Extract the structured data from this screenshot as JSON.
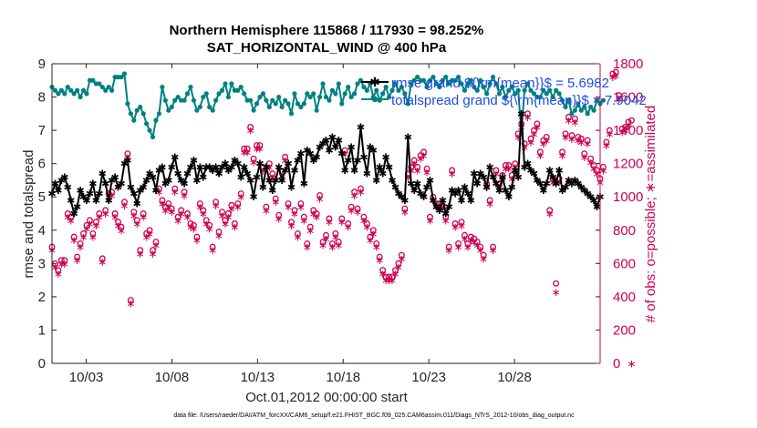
{
  "chart_data": {
    "type": "line",
    "title_line1": "Northern Hemisphere 115868 / 117930 = 98.252%",
    "title_line2": "SAT_HORIZONTAL_WIND @ 400 hPa",
    "xlabel": "Oct.01,2012 00:00:00 start",
    "ylabel": "rmse and totalspread",
    "ylabel_right": "# of obs: o=possible; ∗=assimilated",
    "footnote": "data file: /Users/raeder/DAI/ATM_forcXX/CAM6_setup/f.e21.FHIST_BGC.f09_025.CAM6assim.011/Diags_NTrS_2012-10/obs_diag_output.nc",
    "x_range_days": [
      1,
      33
    ],
    "xticks": [
      {
        "day": 3,
        "label": "10/03"
      },
      {
        "day": 8,
        "label": "10/08"
      },
      {
        "day": 13,
        "label": "10/13"
      },
      {
        "day": 18,
        "label": "10/18"
      },
      {
        "day": 23,
        "label": "10/23"
      },
      {
        "day": 28,
        "label": "10/28"
      }
    ],
    "ylim": [
      0,
      9
    ],
    "yticks": [
      0,
      1,
      2,
      3,
      4,
      5,
      6,
      7,
      8,
      9
    ],
    "ylim_right": [
      0,
      1800
    ],
    "yticks_right": [
      0,
      200,
      400,
      600,
      800,
      1000,
      1200,
      1400,
      1600,
      1800
    ],
    "grid": false,
    "legend_position": "top-right",
    "colors": {
      "rmse": "#000000",
      "spread": "#008080",
      "obs": "#cc0052",
      "legend_text": "#1a4de6"
    },
    "series": [
      {
        "key": "rmse",
        "name": "rmse grand ${\\rm{mean}}$ = 5.6982",
        "axis": "left",
        "values": [
          5.1,
          5.4,
          5.2,
          5.5,
          5.6,
          5.3,
          4.9,
          4.5,
          4.7,
          5.2,
          5.0,
          4.9,
          5.1,
          5.4,
          4.9,
          5.1,
          5.7,
          5.4,
          4.9,
          5.5,
          5.6,
          5.3,
          5.4,
          6.0,
          6.1,
          5.3,
          5.1,
          4.8,
          5.2,
          5.3,
          5.5,
          5.7,
          5.6,
          5.2,
          5.8,
          5.9,
          5.4,
          5.5,
          5.9,
          6.2,
          5.7,
          5.5,
          5.4,
          5.7,
          5.9,
          6.1,
          5.5,
          5.9,
          5.6,
          5.9,
          5.9,
          5.8,
          5.9,
          5.7,
          5.9,
          6.0,
          5.8,
          5.9,
          6.1,
          6.0,
          5.6,
          5.9,
          5.7,
          5.5,
          5.0,
          5.6,
          6.0,
          5.3,
          5.9,
          5.5,
          5.2,
          5.5,
          5.9,
          5.5,
          5.8,
          6.0,
          5.3,
          5.8,
          6.1,
          6.3,
          5.4,
          6.4,
          6.3,
          6.1,
          6.2,
          6.5,
          6.6,
          6.7,
          6.4,
          6.8,
          6.5,
          6.7,
          6.3,
          5.8,
          6.1,
          6.5,
          5.8,
          6.1,
          7.1,
          6.2,
          5.7,
          6.5,
          6.4,
          5.5,
          5.9,
          5.7,
          6.2,
          5.9,
          5.5,
          5.3,
          5.1,
          5.0,
          4.9,
          6.8,
          5.4,
          5.2,
          5.4,
          5.1,
          5.0,
          5.3,
          5.5,
          4.9,
          4.7,
          4.6,
          4.9,
          4.5,
          4.7,
          5.2,
          5.1,
          5.2,
          4.9,
          5.3,
          5.1,
          4.9,
          5.7,
          5.4,
          5.7,
          5.6,
          5.3,
          5.9,
          5.6,
          5.4,
          5.2,
          5.6,
          5.2,
          5.0,
          5.3,
          5.8,
          5.6,
          7.5,
          5.9,
          6.0,
          5.8,
          5.7,
          5.5,
          5.4,
          5.2,
          5.4,
          5.8,
          5.6,
          5.4,
          5.8,
          5.2,
          5.3,
          5.5,
          5.4,
          5.5,
          5.4,
          5.3,
          5.2,
          5.1,
          5.0,
          4.9,
          4.7,
          5.0
        ]
      },
      {
        "key": "spread",
        "name": "totalspread grand ${\\rm{mean}}$ = 7.9042",
        "axis": "left",
        "values": [
          8.3,
          8.2,
          8.1,
          8.2,
          8.1,
          8.3,
          8.2,
          8.1,
          8.2,
          8.0,
          8.2,
          8.1,
          8.5,
          8.5,
          8.4,
          8.4,
          8.3,
          8.2,
          8.3,
          8.2,
          8.6,
          8.6,
          8.6,
          8.7,
          7.8,
          7.5,
          7.3,
          7.6,
          7.7,
          7.5,
          7.2,
          7.0,
          6.8,
          7.3,
          7.5,
          8.3,
          7.9,
          7.6,
          7.7,
          7.9,
          8.0,
          7.9,
          7.9,
          8.1,
          8.3,
          7.9,
          7.6,
          7.7,
          8.0,
          8.1,
          7.7,
          7.6,
          7.9,
          8.1,
          8.2,
          8.4,
          8.0,
          8.4,
          8.2,
          8.2,
          8.3,
          8.1,
          7.9,
          7.9,
          7.6,
          7.8,
          8.0,
          8.1,
          7.9,
          7.7,
          7.9,
          7.8,
          8.0,
          7.7,
          7.9,
          7.8,
          7.5,
          8.1,
          7.8,
          7.7,
          7.8,
          8.1,
          8.0,
          8.1,
          7.6,
          8.0,
          8.4,
          8.0,
          7.9,
          8.2,
          8.1,
          8.4,
          7.8,
          8.1,
          8.3,
          8.0,
          8.1,
          8.4,
          8.5,
          8.3,
          8.2,
          8.4,
          8.0,
          8.2,
          7.9,
          8.1,
          8.3,
          8.0,
          8.2,
          8.4,
          8.2,
          8.3,
          8.1,
          7.8,
          8.4,
          8.5,
          8.6,
          8.5,
          8.5,
          8.3,
          8.5,
          8.6,
          8.4,
          8.3,
          8.5,
          8.6,
          8.4,
          8.5,
          8.5,
          8.6,
          8.4,
          8.2,
          8.4,
          8.5,
          8.3,
          8.2,
          8.5,
          8.3,
          8.1,
          8.4,
          8.6,
          8.4,
          8.1,
          8.3,
          8.0,
          8.2,
          8.3,
          8.1,
          8.2,
          6.9,
          8.2,
          8.4,
          8.2,
          8.1,
          8.0,
          8.0,
          8.2,
          8.1,
          8.2,
          8.0,
          8.2,
          8.1,
          7.9,
          7.7,
          7.9,
          7.5,
          7.6,
          7.8,
          7.6,
          7.7,
          7.5,
          7.7,
          7.6,
          7.9,
          7.8,
          7.9
        ]
      },
      {
        "key": "obs_possible",
        "name": "possible",
        "axis": "right",
        "marker": "o",
        "values": [
          700,
          600,
          560,
          620,
          620,
          900,
          880,
          760,
          640,
          720,
          780,
          830,
          860,
          780,
          850,
          900,
          630,
          920,
          1020,
          1030,
          900,
          850,
          820,
          970,
          1260,
          380,
          910,
          860,
          680,
          900,
          780,
          800,
          680,
          730,
          1050,
          980,
          940,
          960,
          930,
          1050,
          880,
          920,
          1030,
          900,
          840,
          830,
          760,
          960,
          920,
          860,
          830,
          700,
          970,
          790,
          910,
          860,
          900,
          950,
          840,
          960,
          1020,
          1290,
          1290,
          1420,
          1230,
          1310,
          1310,
          1180,
          940,
          1200,
          1140,
          990,
          890,
          1150,
          1240,
          960,
          850,
          920,
          780,
          960,
          880,
          720,
          820,
          920,
          900,
          1010,
          730,
          770,
          870,
          720,
          780,
          730,
          870,
          1280,
          840,
          940,
          1030,
          930,
          1050,
          880,
          840,
          760,
          800,
          720,
          640,
          560,
          520,
          520,
          520,
          560,
          600,
          650,
          930,
          1140,
          1180,
          1220,
          1180,
          1250,
          1270,
          1170,
          880,
          1000,
          960,
          960,
          950,
          880,
          700,
          1160,
          840,
          720,
          850,
          770,
          720,
          760,
          750,
          730,
          700,
          650,
          1080,
          980,
          700,
          1160,
          1080,
          1130,
          1190,
          1190,
          1130,
          1200,
          1380,
          1440,
          1320,
          1500,
          1350,
          1400,
          1440,
          1270,
          1340,
          1360,
          920,
          1110,
          480,
          1110,
          1270,
          1380,
          1480,
          1370,
          1470,
          1360,
          1350,
          1260,
          1340,
          1230,
          1190,
          1160,
          1110,
          1180,
          1330,
          1400,
          1740,
          1750,
          1610,
          1410,
          1420,
          1450,
          1460
        ]
      },
      {
        "key": "obs_assimilated",
        "name": "assimilated",
        "axis": "right",
        "marker": "*",
        "values": [
          680,
          580,
          540,
          600,
          600,
          880,
          860,
          740,
          620,
          700,
          760,
          810,
          840,
          760,
          830,
          880,
          610,
          900,
          1000,
          1010,
          880,
          830,
          800,
          950,
          1240,
          360,
          890,
          840,
          660,
          880,
          760,
          780,
          660,
          710,
          1030,
          960,
          920,
          940,
          910,
          1030,
          860,
          900,
          1010,
          880,
          820,
          810,
          740,
          940,
          900,
          840,
          810,
          680,
          950,
          770,
          890,
          840,
          880,
          930,
          820,
          940,
          1000,
          1270,
          1270,
          1400,
          1210,
          1290,
          1290,
          1160,
          920,
          1180,
          1120,
          970,
          870,
          1130,
          1220,
          940,
          830,
          900,
          760,
          940,
          860,
          700,
          800,
          900,
          880,
          990,
          710,
          750,
          850,
          700,
          760,
          710,
          850,
          1260,
          820,
          920,
          1010,
          910,
          1030,
          860,
          820,
          740,
          780,
          700,
          620,
          540,
          500,
          500,
          500,
          540,
          580,
          630,
          910,
          1120,
          1160,
          1200,
          1160,
          1230,
          1250,
          1150,
          860,
          980,
          940,
          940,
          930,
          860,
          680,
          1140,
          820,
          700,
          830,
          750,
          700,
          740,
          730,
          710,
          680,
          630,
          1060,
          960,
          680,
          1140,
          1060,
          1110,
          1170,
          1170,
          1110,
          1180,
          1360,
          1420,
          1300,
          1480,
          1330,
          1380,
          1420,
          1250,
          1320,
          1340,
          900,
          1090,
          430,
          1090,
          1250,
          1360,
          1460,
          1350,
          1450,
          1340,
          1330,
          1240,
          1320,
          1210,
          1170,
          1140,
          1090,
          1160,
          1310,
          1380,
          1720,
          1730,
          1590,
          1390,
          1400,
          1430,
          0
        ]
      }
    ]
  }
}
